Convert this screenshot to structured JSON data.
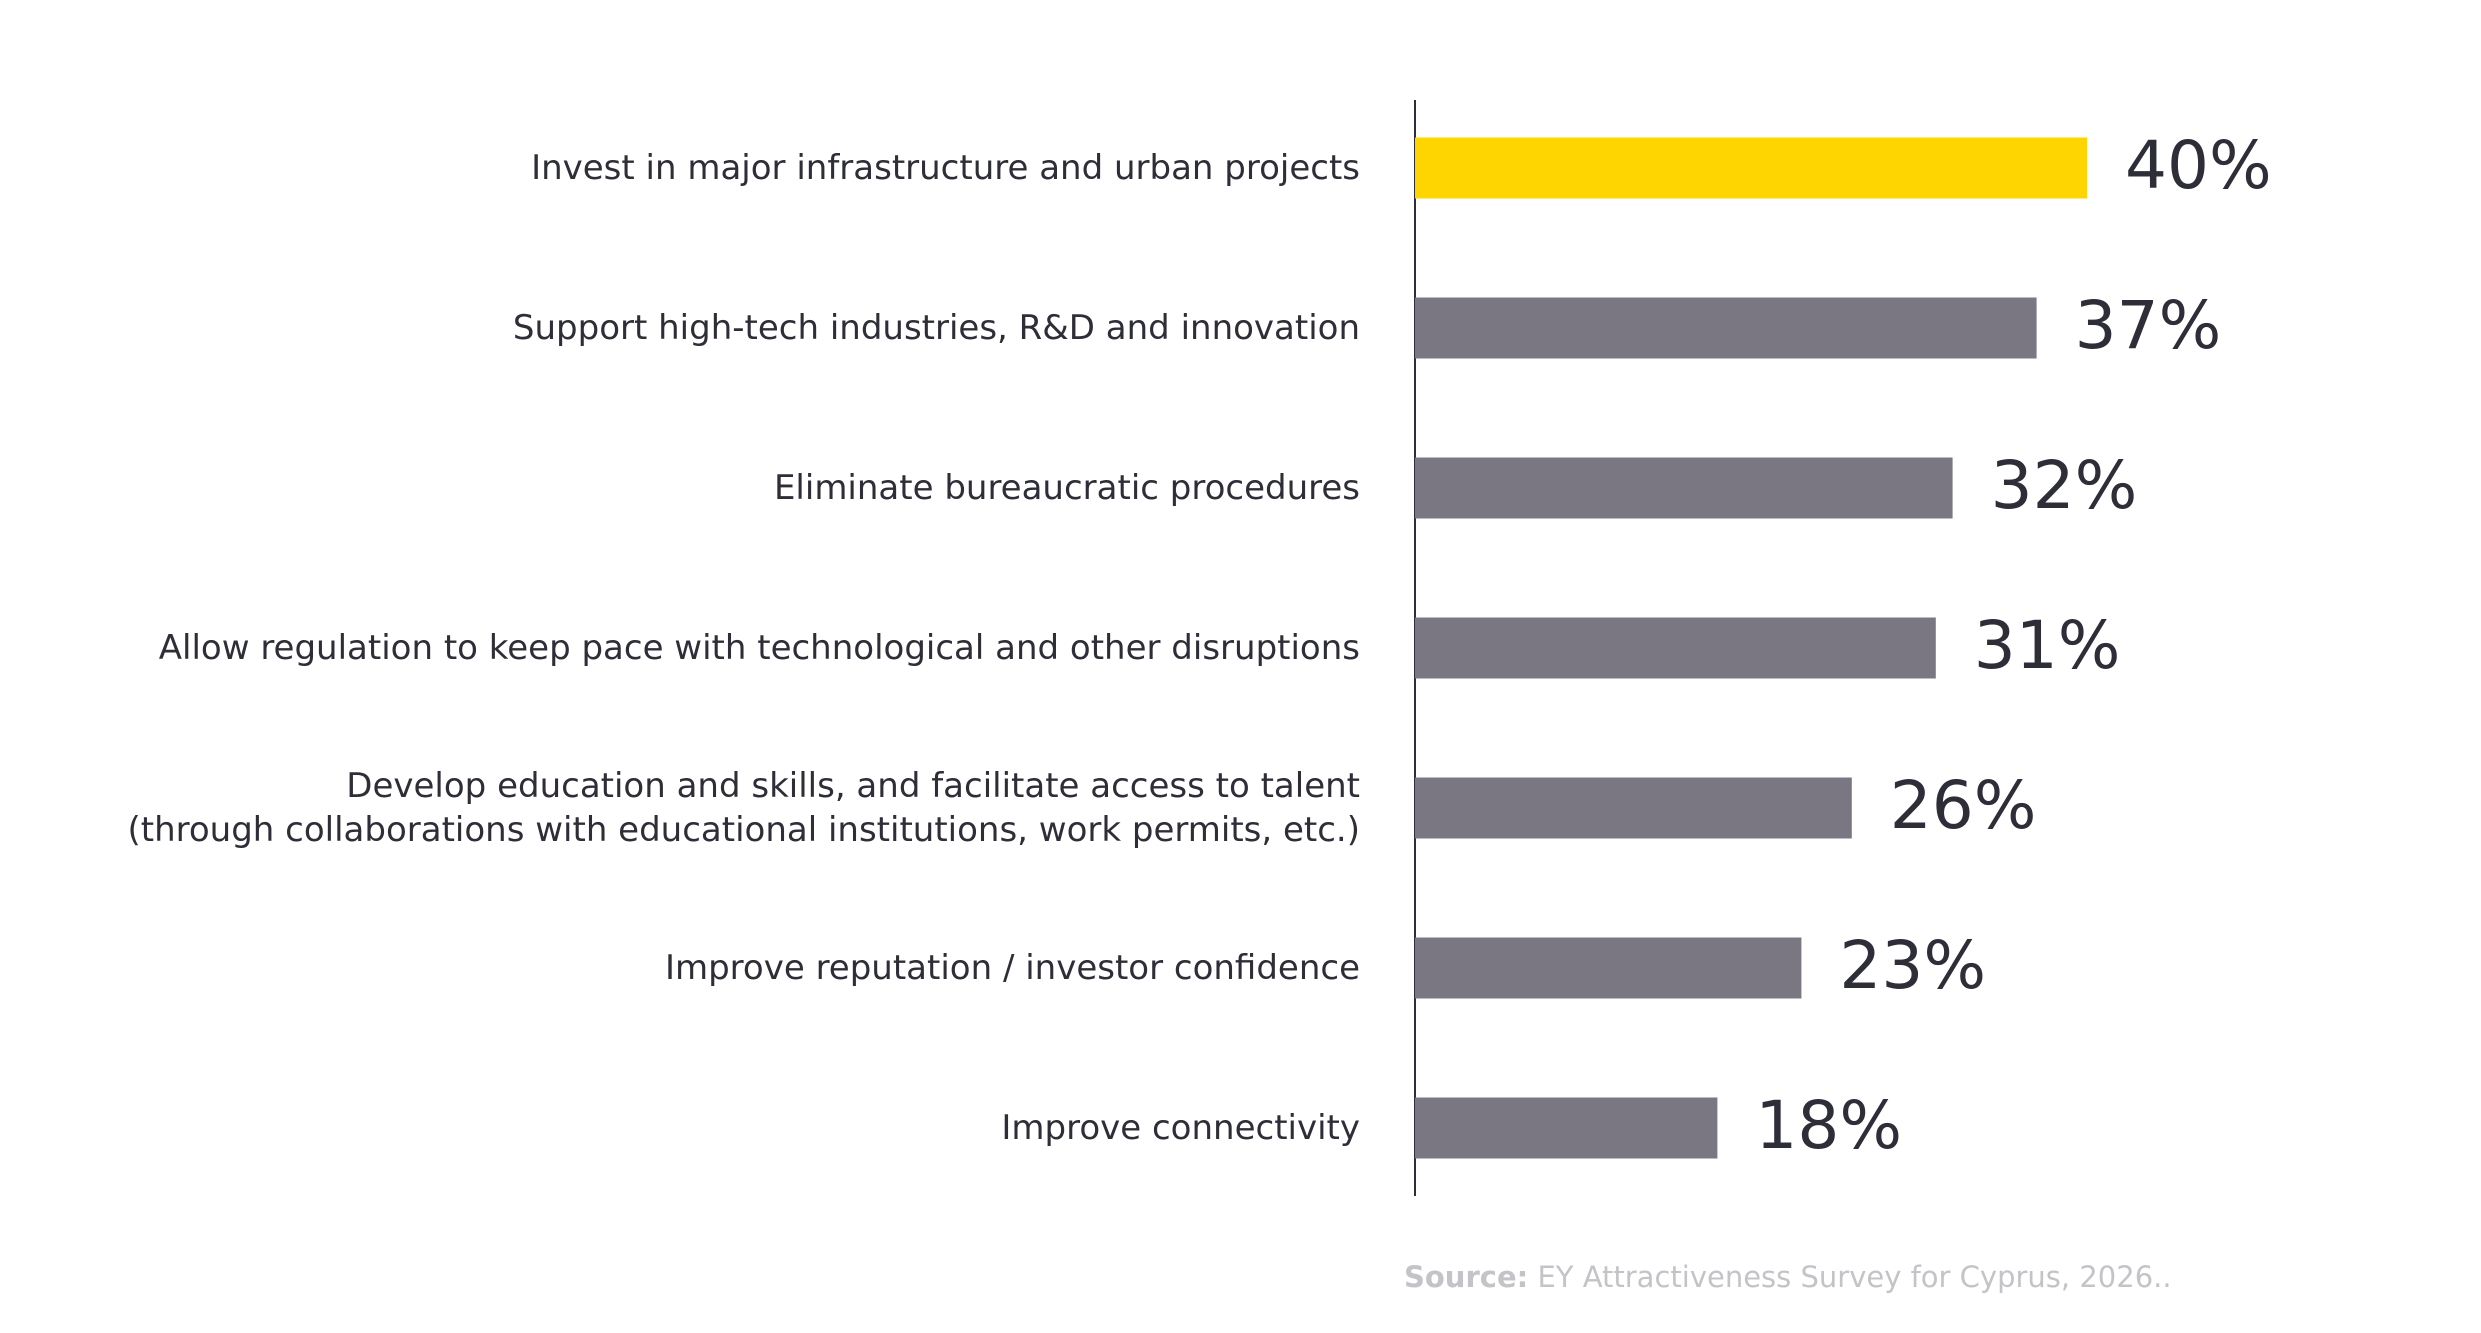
{
  "chart_data": {
    "type": "hbar",
    "categories": [
      "Invest in major infrastructure and urban projects",
      "Support high-tech industries, R&D and innovation",
      "Eliminate bureaucratic procedures",
      "Allow regulation to keep pace with technological and other disruptions",
      "Develop education and skills, and facilitate access to talent\n(through collaborations with educational institutions, work permits, etc.)",
      "Improve reputation / investor confidence",
      "Improve connectivity"
    ],
    "values": [
      40,
      37,
      32,
      31,
      26,
      23,
      18
    ],
    "value_labels": [
      "40%",
      "37%",
      "32%",
      "31%",
      "26%",
      "23%",
      "18%"
    ],
    "colors": [
      "#ffd500",
      "#7a7782",
      "#7a7782",
      "#7a7782",
      "#7a7782",
      "#7a7782",
      "#7a7782"
    ],
    "source_label": "Source:",
    "source_text": "EY Attractiveness Survey for Cyprus, 2026.."
  }
}
